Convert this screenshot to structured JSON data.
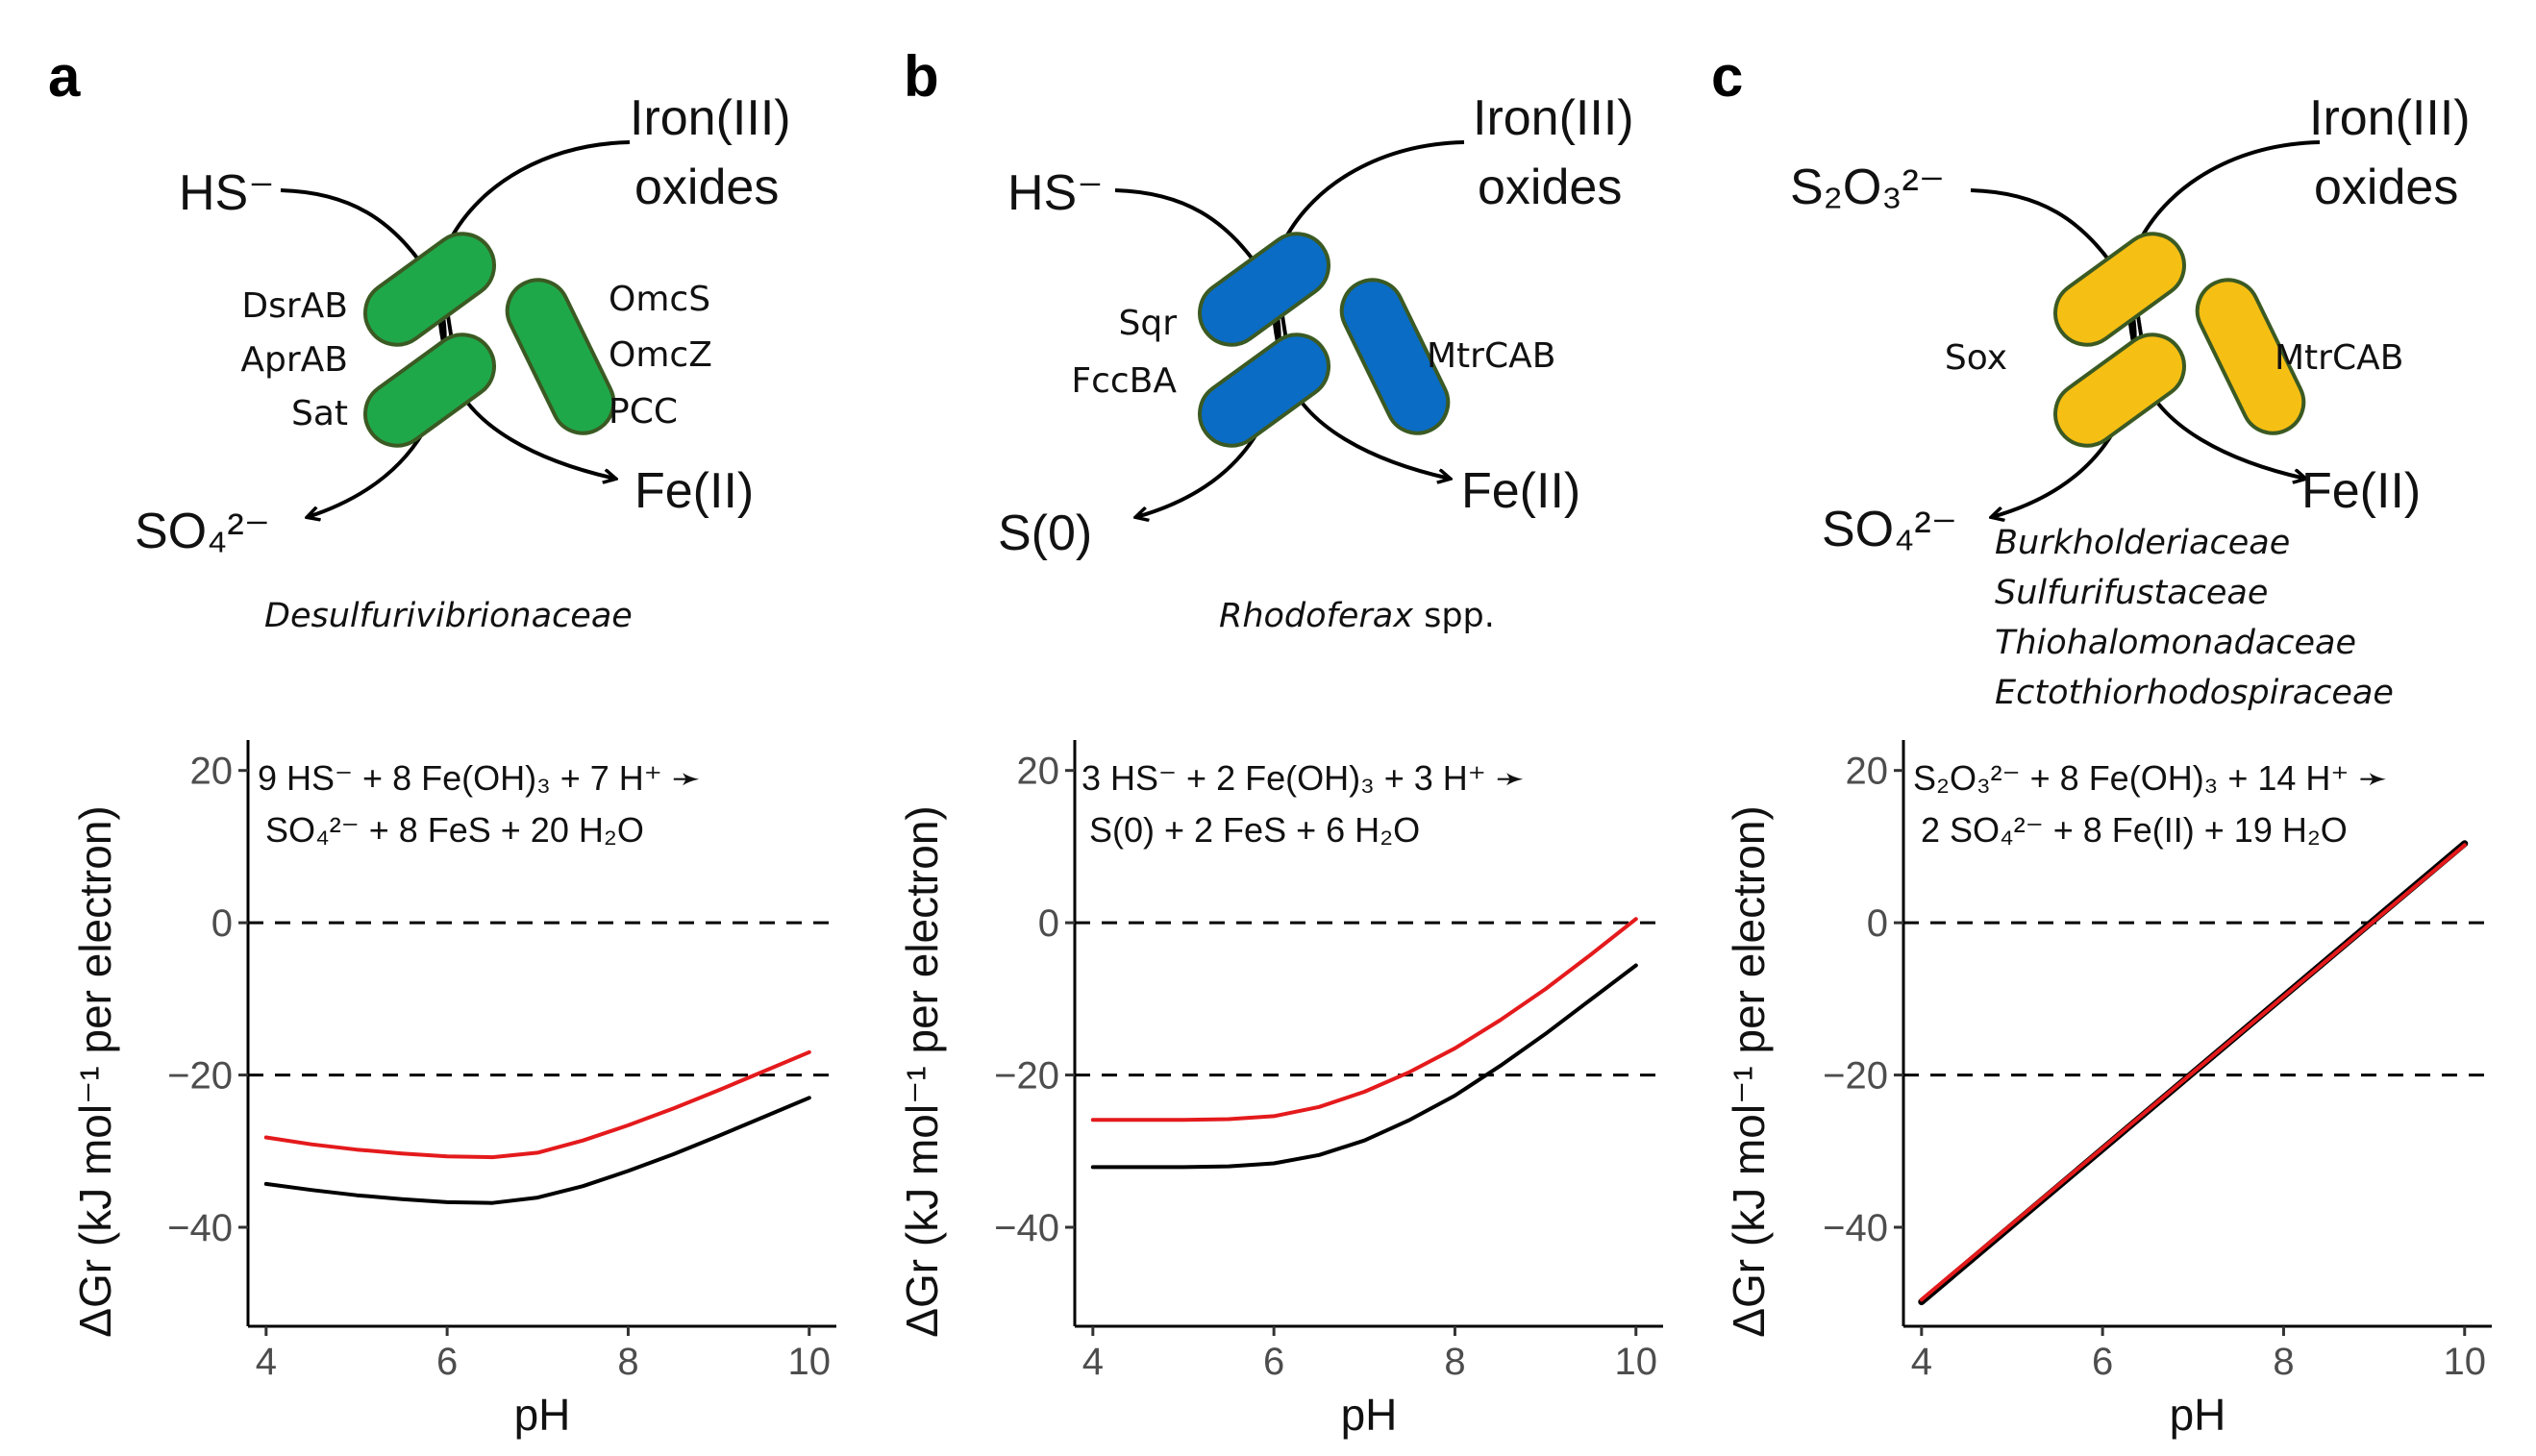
{
  "colors": {
    "green": "#1fa84a",
    "blue": "#0a6cc4",
    "yellow": "#f6bf14",
    "outline": "#3b5a23",
    "red_curve": "#e41a1c",
    "black_curve": "#000000"
  },
  "panels": [
    {
      "letter": "a",
      "donor": "HS⁻",
      "acceptor_line1": "Iron(III)",
      "acceptor_line2": "oxides",
      "product_s": "SO₄²⁻",
      "product_fe": "Fe(II)",
      "left_proteins": [
        "DsrAB",
        "AprAB",
        "Sat"
      ],
      "right_proteins": [
        "OmcS",
        "OmcZ",
        "PCC"
      ],
      "taxa": [
        {
          "name": "Desulfurivibrionaceae",
          "rest": ""
        }
      ],
      "equation_line1": "9 HS⁻ + 8 Fe(OH)₃ + 7 H⁺ ➛",
      "equation_line2": "SO₄²⁻ + 8 FeS + 20 H₂O"
    },
    {
      "letter": "b",
      "donor": "HS⁻",
      "acceptor_line1": "Iron(III)",
      "acceptor_line2": "oxides",
      "product_s": "S(0)",
      "product_fe": "Fe(II)",
      "left_proteins": [
        "Sqr",
        "FccBA"
      ],
      "right_proteins": [
        "MtrCAB"
      ],
      "taxa": [
        {
          "name": "Rhodoferax",
          "rest": " spp."
        }
      ],
      "equation_line1": "3 HS⁻ + 2 Fe(OH)₃ + 3 H⁺ ➛",
      "equation_line2": "S(0) + 2 FeS + 6 H₂O"
    },
    {
      "letter": "c",
      "donor": "S₂O₃²⁻",
      "acceptor_line1": "Iron(III)",
      "acceptor_line2": "oxides",
      "product_s": "SO₄²⁻",
      "product_fe": "Fe(II)",
      "left_proteins": [
        "Sox"
      ],
      "right_proteins": [
        "MtrCAB"
      ],
      "taxa": [
        {
          "name": "Burkholderiaceae",
          "rest": ""
        },
        {
          "name": "Sulfurifustaceae",
          "rest": ""
        },
        {
          "name": "Thiohalomonadaceae",
          "rest": ""
        },
        {
          "name": "Ectothiorhodospiraceae",
          "rest": ""
        }
      ],
      "equation_line1": "S₂O₃²⁻ + 8 Fe(OH)₃ + 14 H⁺ ➛",
      "equation_line2": "2 SO₄²⁻ + 8 Fe(II) + 19 H₂O"
    }
  ],
  "chart_data": [
    {
      "type": "line",
      "xlabel": "pH",
      "ylabel": "ΔGr (kJ mol⁻¹ per electron)",
      "xlim": [
        3.8,
        10.3
      ],
      "ylim": [
        -53,
        24
      ],
      "xticks": [
        4,
        6,
        8,
        10
      ],
      "yticks": [
        -40,
        -20,
        0,
        20
      ],
      "hlines": [
        0,
        -20
      ],
      "series": [
        {
          "color": "red",
          "x": [
            4,
            4.5,
            5,
            5.5,
            6,
            6.5,
            7,
            7.5,
            8,
            8.5,
            9,
            9.5,
            10
          ],
          "y": [
            -28.2,
            -29.1,
            -29.8,
            -30.3,
            -30.7,
            -30.8,
            -30.2,
            -28.6,
            -26.6,
            -24.4,
            -22.0,
            -19.5,
            -17.0
          ]
        },
        {
          "color": "black",
          "x": [
            4,
            4.5,
            5,
            5.5,
            6,
            6.5,
            7,
            7.5,
            8,
            8.5,
            9,
            9.5,
            10
          ],
          "y": [
            -34.3,
            -35.1,
            -35.8,
            -36.3,
            -36.7,
            -36.8,
            -36.1,
            -34.6,
            -32.6,
            -30.4,
            -28.0,
            -25.5,
            -23.0
          ]
        }
      ]
    },
    {
      "type": "line",
      "xlabel": "pH",
      "ylabel": "ΔGr (kJ mol⁻¹ per electron)",
      "xlim": [
        3.8,
        10.3
      ],
      "ylim": [
        -53,
        24
      ],
      "xticks": [
        4,
        6,
        8,
        10
      ],
      "yticks": [
        -40,
        -20,
        0,
        20
      ],
      "hlines": [
        0,
        -20
      ],
      "series": [
        {
          "color": "red",
          "x": [
            4,
            4.5,
            5,
            5.5,
            6,
            6.5,
            7,
            7.5,
            8,
            8.5,
            9,
            9.5,
            10
          ],
          "y": [
            -25.9,
            -25.9,
            -25.9,
            -25.8,
            -25.4,
            -24.2,
            -22.2,
            -19.6,
            -16.5,
            -12.8,
            -8.7,
            -4.2,
            0.5
          ]
        },
        {
          "color": "black",
          "x": [
            4,
            4.5,
            5,
            5.5,
            6,
            6.5,
            7,
            7.5,
            8,
            8.5,
            9,
            9.5,
            10
          ],
          "y": [
            -32.1,
            -32.1,
            -32.1,
            -32.0,
            -31.6,
            -30.5,
            -28.6,
            -25.9,
            -22.7,
            -18.8,
            -14.6,
            -10.1,
            -5.6
          ]
        }
      ]
    },
    {
      "type": "line",
      "xlabel": "pH",
      "ylabel": "ΔGr (kJ mol⁻¹ per electron)",
      "xlim": [
        3.8,
        10.3
      ],
      "ylim": [
        -53,
        24
      ],
      "xticks": [
        4,
        6,
        8,
        10
      ],
      "yticks": [
        -40,
        -20,
        0,
        20
      ],
      "hlines": [
        0,
        -20
      ],
      "series": [
        {
          "color": "red",
          "x": [
            4,
            10
          ],
          "y": [
            -49.5,
            10.2
          ]
        },
        {
          "color": "black",
          "x": [
            4,
            10
          ],
          "y": [
            -49.8,
            10.4
          ]
        }
      ]
    }
  ]
}
